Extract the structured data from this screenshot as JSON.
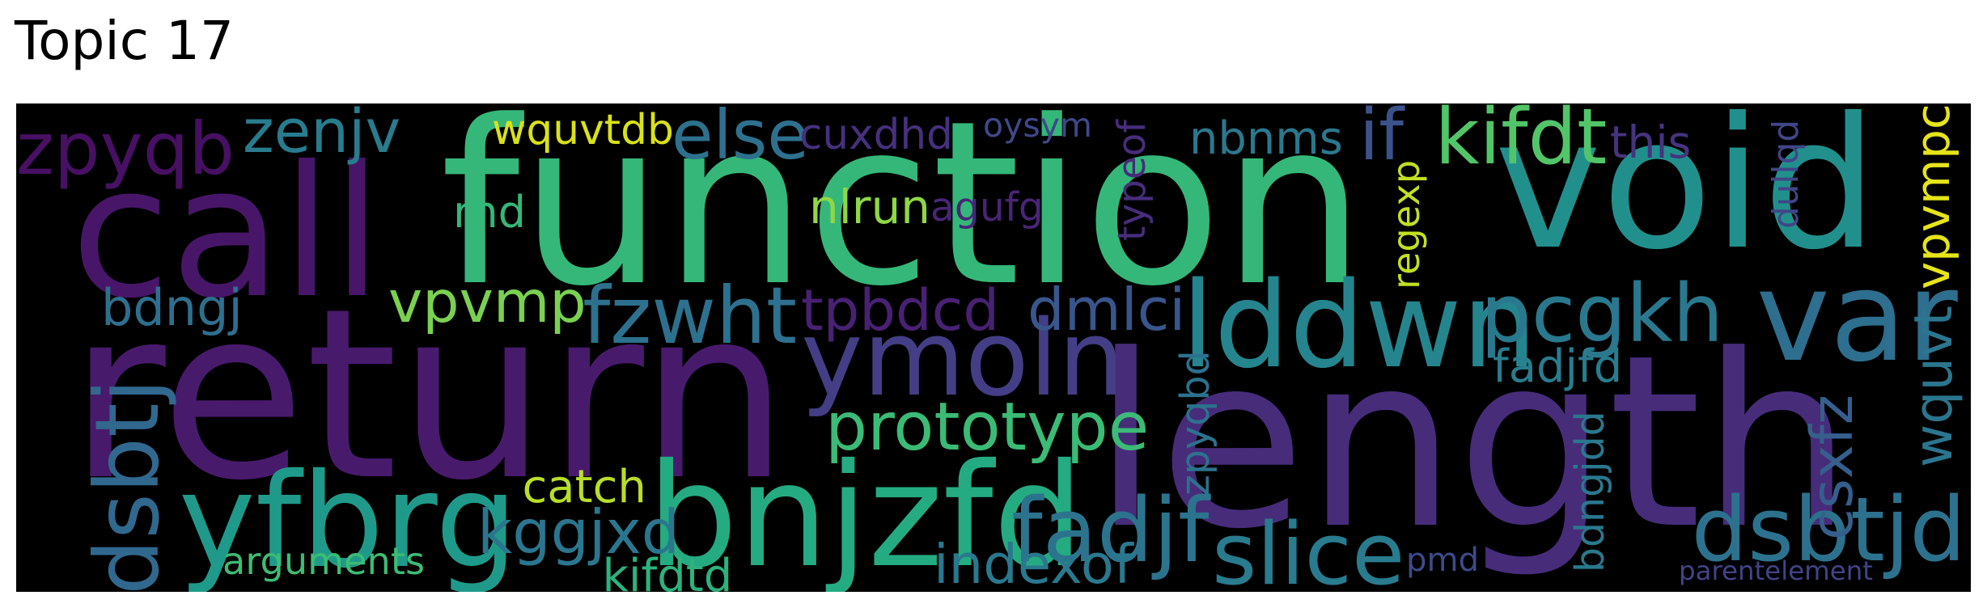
{
  "title": "Topic 17",
  "words": [
    {
      "text": "function",
      "color": "#35b779",
      "rotated": false
    },
    {
      "text": "void",
      "color": "#21908d",
      "rotated": false
    },
    {
      "text": "return",
      "color": "#481a6c",
      "rotated": false
    },
    {
      "text": "length",
      "color": "#472c7a",
      "rotated": false
    },
    {
      "text": "call",
      "color": "#481668",
      "rotated": false
    },
    {
      "text": "lddwn",
      "color": "#25858e",
      "rotated": false
    },
    {
      "text": "ymoln",
      "color": "#433e85",
      "rotated": false
    },
    {
      "text": "bnjzfd",
      "color": "#25ab82",
      "rotated": false
    },
    {
      "text": "yfbrg",
      "color": "#1f9a8a",
      "rotated": false
    },
    {
      "text": "var",
      "color": "#2e6e8e",
      "rotated": false
    },
    {
      "text": "pcgkh",
      "color": "#2a788e",
      "rotated": false
    },
    {
      "text": "zpyqb",
      "color": "#471063",
      "rotated": false
    },
    {
      "text": "dsbtjd",
      "color": "#2c728e",
      "rotated": false
    },
    {
      "text": "slice",
      "color": "#297b8e",
      "rotated": false
    },
    {
      "text": "fzwht",
      "color": "#2d718e",
      "rotated": false
    },
    {
      "text": "fadjf",
      "color": "#2c738e",
      "rotated": false
    },
    {
      "text": "prototype",
      "color": "#3bbb75",
      "rotated": false
    },
    {
      "text": "dsbtj",
      "color": "#31688e",
      "rotated": true
    },
    {
      "text": "kifdt",
      "color": "#52c569",
      "rotated": false
    },
    {
      "text": "else",
      "color": "#2d718e",
      "rotated": false
    },
    {
      "text": "zenjv",
      "color": "#287c8e",
      "rotated": false
    },
    {
      "text": "vpvmp",
      "color": "#7ad151",
      "rotated": false
    },
    {
      "text": "tpbdcd",
      "color": "#482173",
      "rotated": false
    },
    {
      "text": "kggjxd",
      "color": "#2a768e",
      "rotated": false
    },
    {
      "text": "nbnms",
      "color": "#2a788e",
      "rotated": false
    },
    {
      "text": "if",
      "color": "#3b528b",
      "rotated": false
    },
    {
      "text": "wquvt",
      "color": "#2b758e",
      "rotated": true
    },
    {
      "text": "vpvmpc",
      "color": "#e5e419",
      "rotated": true
    },
    {
      "text": "dmlci",
      "color": "#39568c",
      "rotated": false
    },
    {
      "text": "bdngj",
      "color": "#2e6f8e",
      "rotated": false
    },
    {
      "text": "csxfz",
      "color": "#355f8d",
      "rotated": true
    },
    {
      "text": "wquvtdb",
      "color": "#d8e219",
      "rotated": false
    },
    {
      "text": "agufg",
      "color": "#482576",
      "rotated": false
    },
    {
      "text": "indexof",
      "color": "#2a788e",
      "rotated": false
    },
    {
      "text": "arguments",
      "color": "#3dbc74",
      "rotated": false
    },
    {
      "text": "catch",
      "color": "#b8de29",
      "rotated": false
    },
    {
      "text": "kifdtd",
      "color": "#2db27d",
      "rotated": false
    },
    {
      "text": "cuxdhd",
      "color": "#46307e",
      "rotated": false
    },
    {
      "text": "oysym",
      "color": "#3f4889",
      "rotated": false
    },
    {
      "text": "nlrun",
      "color": "#8fd744",
      "rotated": false
    },
    {
      "text": "rnd",
      "color": "#35b779",
      "rotated": false
    },
    {
      "text": "typeof",
      "color": "#472d7b",
      "rotated": true
    },
    {
      "text": "regexp",
      "color": "#c2df23",
      "rotated": true
    },
    {
      "text": "zpyqbd",
      "color": "#2c728e",
      "rotated": true
    },
    {
      "text": "bdngjdd",
      "color": "#2a788e",
      "rotated": true
    },
    {
      "text": "dullqd",
      "color": "#404688",
      "rotated": true
    },
    {
      "text": "this",
      "color": "#46337f",
      "rotated": false
    },
    {
      "text": "fadjfd",
      "color": "#287d8e",
      "rotated": false
    },
    {
      "text": "pmd",
      "color": "#3e4a89",
      "rotated": false
    },
    {
      "text": "parentelement",
      "color": "#414487",
      "rotated": false
    }
  ]
}
